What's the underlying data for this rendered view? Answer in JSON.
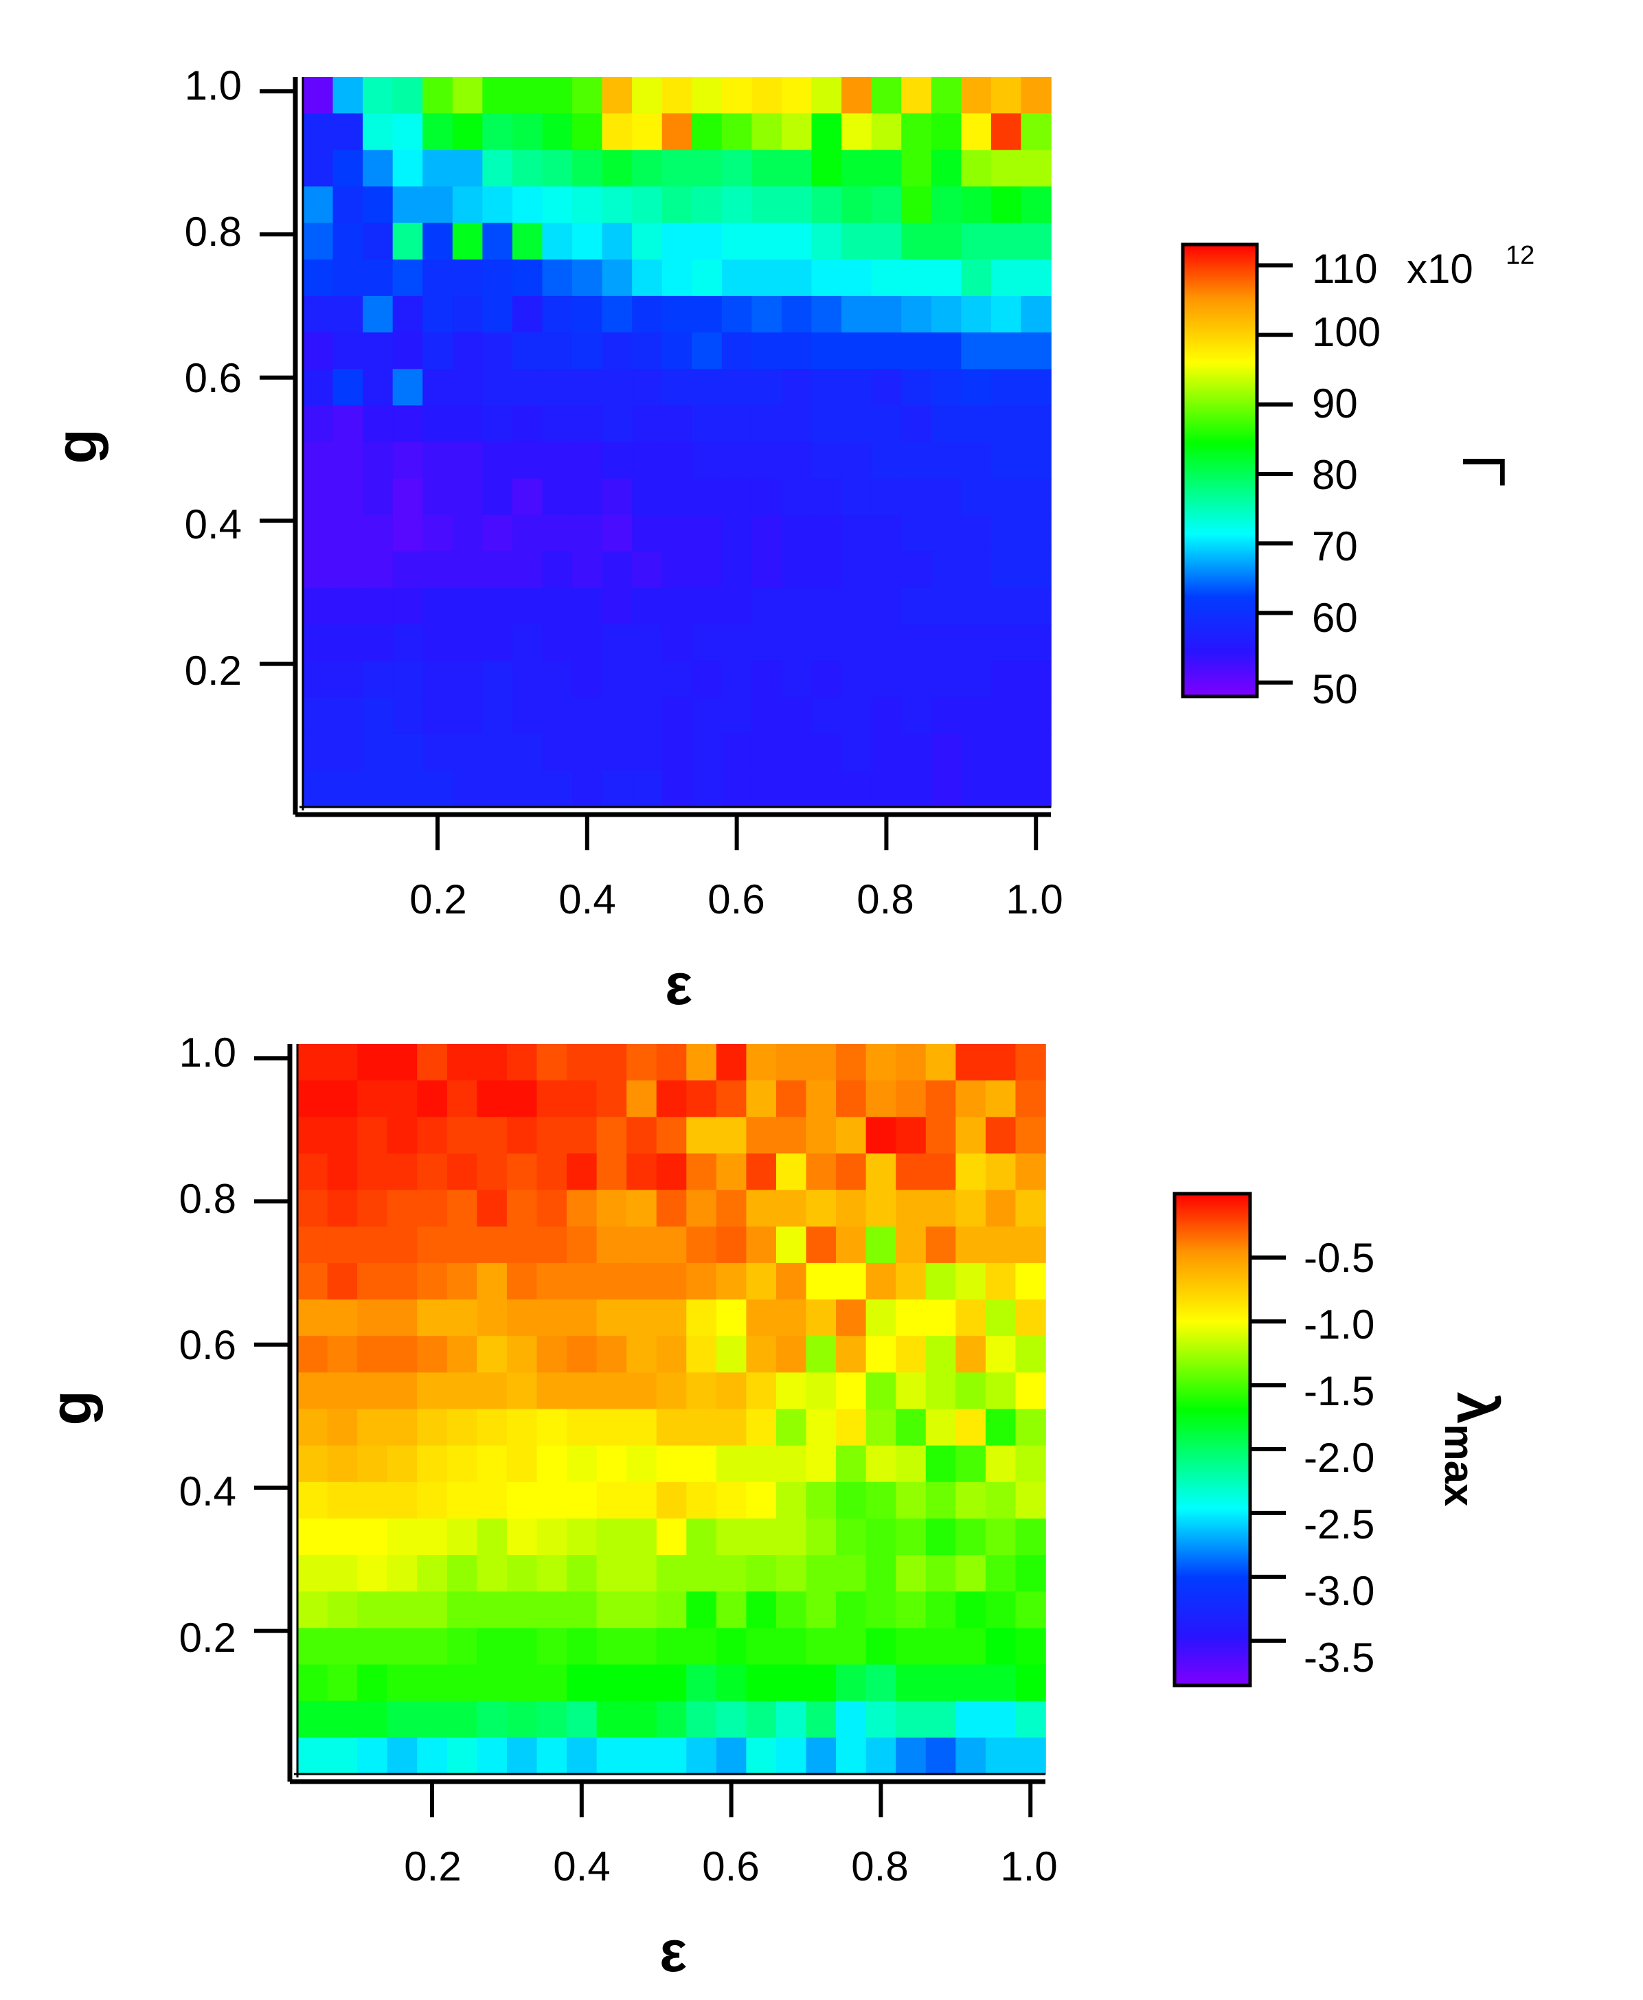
{
  "chart_data": [
    {
      "type": "heatmap",
      "title": "",
      "xlabel": "ε",
      "ylabel": "g",
      "xlim": [
        0.02,
        1.02
      ],
      "ylim": [
        0.0,
        1.02
      ],
      "xticks": [
        "0.2",
        "0.4",
        "0.6",
        "0.8",
        "1.0"
      ],
      "yticks": [
        "0.2",
        "0.4",
        "0.6",
        "0.8",
        "1.0"
      ],
      "x_centers": [
        0.05,
        0.09,
        0.13,
        0.17,
        0.21,
        0.25,
        0.29,
        0.33,
        0.37,
        0.41,
        0.45,
        0.49,
        0.53,
        0.57,
        0.61,
        0.65,
        0.69,
        0.73,
        0.77,
        0.81,
        0.85,
        0.89,
        0.93,
        0.97,
        1.01
      ],
      "y_centers": [
        1.0,
        0.95,
        0.9,
        0.85,
        0.8,
        0.75,
        0.7,
        0.65,
        0.6,
        0.55,
        0.5,
        0.45,
        0.4,
        0.35,
        0.3,
        0.25,
        0.2,
        0.15,
        0.1,
        0.05
      ],
      "colorbar": {
        "label": "Γ",
        "ticks": [
          "50",
          "60",
          "70",
          "80",
          "90",
          "100",
          "110"
        ],
        "multiplier": "x10",
        "exponent": "12",
        "range": [
          48,
          113
        ]
      },
      "values": [
        [
          50,
          68,
          75,
          76,
          88,
          91,
          86,
          86,
          86,
          88,
          102,
          95,
          98,
          95,
          97,
          98,
          97,
          94,
          105,
          88,
          99,
          88,
          103,
          101,
          104
        ],
        [
          58,
          58,
          73,
          72,
          82,
          84,
          80,
          81,
          83,
          86,
          98,
          97,
          106,
          86,
          88,
          91,
          93,
          84,
          95,
          93,
          87,
          86,
          97,
          110,
          90
        ],
        [
          58,
          62,
          66,
          71,
          68,
          68,
          75,
          77,
          78,
          80,
          82,
          80,
          79,
          79,
          78,
          80,
          80,
          84,
          82,
          82,
          87,
          83,
          91,
          92,
          92
        ],
        [
          66,
          60,
          62,
          67,
          67,
          69,
          70,
          71,
          72,
          73,
          74,
          75,
          77,
          76,
          75,
          76,
          76,
          78,
          80,
          79,
          86,
          81,
          82,
          84,
          82
        ],
        [
          64,
          61,
          59,
          77,
          62,
          83,
          63,
          82,
          70,
          71,
          69,
          73,
          71,
          71,
          72,
          72,
          72,
          74,
          76,
          76,
          80,
          80,
          78,
          78,
          78
        ],
        [
          62,
          61,
          61,
          63,
          60,
          60,
          61,
          62,
          64,
          65,
          67,
          70,
          71,
          72,
          70,
          70,
          70,
          71,
          71,
          72,
          72,
          72,
          76,
          73,
          73
        ],
        [
          57,
          57,
          65,
          56,
          60,
          59,
          61,
          56,
          60,
          61,
          63,
          61,
          62,
          62,
          63,
          64,
          63,
          64,
          66,
          66,
          67,
          68,
          69,
          70,
          68
        ],
        [
          54,
          56,
          56,
          55,
          58,
          56,
          57,
          59,
          59,
          60,
          58,
          59,
          61,
          63,
          60,
          61,
          61,
          62,
          62,
          62,
          62,
          62,
          64,
          64,
          64
        ],
        [
          56,
          62,
          56,
          65,
          56,
          56,
          57,
          57,
          57,
          57,
          57,
          57,
          58,
          58,
          58,
          58,
          57,
          58,
          58,
          57,
          59,
          60,
          61,
          60,
          60
        ],
        [
          53,
          52,
          54,
          54,
          55,
          55,
          56,
          55,
          56,
          56,
          57,
          56,
          56,
          57,
          57,
          57,
          57,
          58,
          58,
          58,
          57,
          59,
          59,
          59,
          59
        ],
        [
          52,
          52,
          53,
          52,
          53,
          53,
          54,
          54,
          54,
          54,
          55,
          55,
          55,
          56,
          56,
          56,
          56,
          57,
          57,
          58,
          58,
          58,
          58,
          59,
          59
        ],
        [
          52,
          52,
          53,
          51,
          53,
          53,
          54,
          52,
          54,
          54,
          53,
          55,
          55,
          55,
          55,
          55,
          56,
          56,
          57,
          57,
          57,
          57,
          58,
          58,
          58
        ],
        [
          52,
          52,
          52,
          51,
          52,
          53,
          52,
          53,
          53,
          53,
          52,
          54,
          54,
          54,
          55,
          54,
          55,
          55,
          56,
          56,
          57,
          57,
          57,
          58,
          58
        ],
        [
          52,
          52,
          52,
          53,
          53,
          53,
          53,
          53,
          54,
          53,
          54,
          53,
          54,
          54,
          55,
          54,
          55,
          55,
          56,
          56,
          56,
          57,
          57,
          58,
          58
        ],
        [
          54,
          54,
          54,
          54,
          55,
          55,
          55,
          55,
          55,
          55,
          54,
          55,
          55,
          55,
          55,
          56,
          56,
          56,
          56,
          56,
          57,
          57,
          57,
          57,
          57
        ],
        [
          55,
          55,
          55,
          56,
          55,
          55,
          55,
          56,
          55,
          55,
          56,
          56,
          55,
          56,
          56,
          56,
          56,
          56,
          56,
          56,
          56,
          56,
          56,
          56,
          56
        ],
        [
          56,
          56,
          57,
          57,
          56,
          56,
          57,
          56,
          56,
          55,
          56,
          56,
          56,
          55,
          56,
          55,
          56,
          55,
          56,
          56,
          56,
          56,
          56,
          55,
          55
        ],
        [
          57,
          57,
          58,
          57,
          56,
          56,
          57,
          56,
          56,
          56,
          56,
          56,
          55,
          56,
          56,
          55,
          55,
          56,
          56,
          55,
          56,
          55,
          55,
          55,
          55
        ],
        [
          57,
          57,
          58,
          58,
          57,
          57,
          57,
          57,
          56,
          56,
          56,
          56,
          55,
          56,
          55,
          55,
          55,
          55,
          56,
          55,
          55,
          54,
          55,
          55,
          55
        ],
        [
          58,
          58,
          58,
          58,
          58,
          57,
          57,
          57,
          57,
          56,
          57,
          57,
          55,
          56,
          55,
          55,
          55,
          55,
          55,
          55,
          55,
          54,
          55,
          55,
          55
        ]
      ]
    },
    {
      "type": "heatmap",
      "title": "",
      "xlabel": "ε",
      "ylabel": "g",
      "xlim": [
        0.02,
        1.02
      ],
      "ylim": [
        0.0,
        1.02
      ],
      "xticks": [
        "0.2",
        "0.4",
        "0.6",
        "0.8",
        "1.0"
      ],
      "yticks": [
        "0.2",
        "0.4",
        "0.6",
        "0.8",
        "1.0"
      ],
      "x_centers": [
        0.05,
        0.09,
        0.13,
        0.17,
        0.21,
        0.25,
        0.29,
        0.33,
        0.37,
        0.41,
        0.45,
        0.49,
        0.53,
        0.57,
        0.61,
        0.65,
        0.69,
        0.73,
        0.77,
        0.81,
        0.85,
        0.89,
        0.93,
        0.97,
        1.01
      ],
      "y_centers": [
        1.0,
        0.95,
        0.9,
        0.85,
        0.8,
        0.75,
        0.7,
        0.65,
        0.6,
        0.55,
        0.5,
        0.45,
        0.4,
        0.35,
        0.3,
        0.25,
        0.2,
        0.15,
        0.1,
        0.05
      ],
      "colorbar": {
        "label": "λmax",
        "label_main": "λ",
        "label_sub": "max",
        "ticks": [
          "-0.5",
          "-1.0",
          "-1.5",
          "-2.0",
          "-2.5",
          "-3.0",
          "-3.5"
        ],
        "range": [
          -3.85,
          0
        ]
      },
      "values": [
        [
          -0.1,
          -0.1,
          -0.05,
          -0.05,
          -0.2,
          -0.1,
          -0.1,
          -0.15,
          -0.25,
          -0.2,
          -0.2,
          -0.3,
          -0.25,
          -0.5,
          -0.1,
          -0.5,
          -0.45,
          -0.45,
          -0.35,
          -0.5,
          -0.45,
          -0.6,
          -0.15,
          -0.15,
          -0.25
        ],
        [
          -0.05,
          -0.05,
          -0.1,
          -0.1,
          -0.05,
          -0.15,
          -0.05,
          -0.05,
          -0.15,
          -0.15,
          -0.2,
          -0.45,
          -0.1,
          -0.15,
          -0.25,
          -0.6,
          -0.3,
          -0.5,
          -0.3,
          -0.45,
          -0.4,
          -0.3,
          -0.5,
          -0.6,
          -0.3
        ],
        [
          -0.1,
          -0.1,
          -0.15,
          -0.1,
          -0.15,
          -0.2,
          -0.2,
          -0.15,
          -0.2,
          -0.2,
          -0.3,
          -0.2,
          -0.3,
          -0.7,
          -0.7,
          -0.4,
          -0.4,
          -0.5,
          -0.6,
          -0.05,
          -0.1,
          -0.3,
          -0.6,
          -0.2,
          -0.35
        ],
        [
          -0.15,
          -0.1,
          -0.15,
          -0.15,
          -0.2,
          -0.15,
          -0.2,
          -0.25,
          -0.2,
          -0.1,
          -0.3,
          -0.15,
          -0.1,
          -0.35,
          -0.5,
          -0.2,
          -0.9,
          -0.4,
          -0.3,
          -0.7,
          -0.25,
          -0.25,
          -0.8,
          -0.7,
          -0.5
        ],
        [
          -0.2,
          -0.15,
          -0.2,
          -0.25,
          -0.25,
          -0.3,
          -0.15,
          -0.3,
          -0.25,
          -0.4,
          -0.5,
          -0.55,
          -0.3,
          -0.45,
          -0.35,
          -0.6,
          -0.6,
          -0.7,
          -0.6,
          -0.7,
          -0.6,
          -0.6,
          -0.7,
          -0.5,
          -0.7
        ],
        [
          -0.25,
          -0.25,
          -0.25,
          -0.25,
          -0.3,
          -0.3,
          -0.3,
          -0.3,
          -0.3,
          -0.35,
          -0.45,
          -0.45,
          -0.45,
          -0.35,
          -0.3,
          -0.45,
          -1.05,
          -0.3,
          -0.55,
          -1.35,
          -0.6,
          -0.35,
          -0.6,
          -0.6,
          -0.6
        ],
        [
          -0.3,
          -0.2,
          -0.3,
          -0.3,
          -0.35,
          -0.4,
          -0.55,
          -0.35,
          -0.4,
          -0.4,
          -0.4,
          -0.4,
          -0.4,
          -0.45,
          -0.55,
          -0.7,
          -0.45,
          -1.0,
          -1.0,
          -0.55,
          -0.7,
          -1.2,
          -1.1,
          -0.8,
          -1.0
        ],
        [
          -0.5,
          -0.5,
          -0.45,
          -0.45,
          -0.6,
          -0.6,
          -0.55,
          -0.5,
          -0.5,
          -0.5,
          -0.6,
          -0.6,
          -0.6,
          -0.9,
          -1.0,
          -0.55,
          -0.55,
          -0.7,
          -0.4,
          -1.1,
          -1.0,
          -1.0,
          -0.8,
          -1.2,
          -0.8
        ],
        [
          -0.35,
          -0.4,
          -0.35,
          -0.35,
          -0.4,
          -0.5,
          -0.7,
          -0.6,
          -0.45,
          -0.4,
          -0.45,
          -0.6,
          -0.55,
          -0.85,
          -1.1,
          -0.6,
          -0.5,
          -1.3,
          -0.6,
          -1.0,
          -0.85,
          -1.2,
          -0.6,
          -1.05,
          -1.2
        ],
        [
          -0.5,
          -0.5,
          -0.5,
          -0.5,
          -0.6,
          -0.6,
          -0.6,
          -0.65,
          -0.55,
          -0.55,
          -0.55,
          -0.55,
          -0.6,
          -0.7,
          -0.65,
          -0.8,
          -1.05,
          -1.1,
          -1.0,
          -1.35,
          -1.1,
          -1.2,
          -1.3,
          -1.2,
          -1.0
        ],
        [
          -0.6,
          -0.55,
          -0.65,
          -0.65,
          -0.75,
          -0.8,
          -0.85,
          -0.9,
          -0.95,
          -0.9,
          -0.9,
          -0.9,
          -0.75,
          -0.75,
          -0.75,
          -0.9,
          -1.3,
          -1.05,
          -0.9,
          -1.3,
          -1.5,
          -1.1,
          -0.9,
          -1.6,
          -1.3
        ],
        [
          -0.7,
          -0.65,
          -0.7,
          -0.75,
          -0.85,
          -0.9,
          -0.95,
          -0.9,
          -1.0,
          -1.05,
          -1.0,
          -1.05,
          -1.0,
          -1.0,
          -1.1,
          -1.1,
          -1.1,
          -1.05,
          -1.35,
          -1.1,
          -1.15,
          -1.6,
          -1.5,
          -1.1,
          -1.2
        ],
        [
          -0.9,
          -0.85,
          -0.85,
          -0.85,
          -0.9,
          -0.95,
          -0.95,
          -1.0,
          -1.0,
          -1.0,
          -0.95,
          -0.95,
          -0.8,
          -0.9,
          -0.95,
          -1.0,
          -1.2,
          -1.35,
          -1.5,
          -1.45,
          -1.3,
          -1.4,
          -1.25,
          -1.3,
          -1.15
        ],
        [
          -1.0,
          -1.0,
          -1.0,
          -1.05,
          -1.05,
          -1.1,
          -1.2,
          -1.05,
          -1.1,
          -1.15,
          -1.2,
          -1.2,
          -1.0,
          -1.3,
          -1.2,
          -1.2,
          -1.2,
          -1.3,
          -1.45,
          -1.5,
          -1.45,
          -1.6,
          -1.5,
          -1.4,
          -1.5
        ],
        [
          -1.1,
          -1.1,
          -1.05,
          -1.1,
          -1.2,
          -1.3,
          -1.2,
          -1.25,
          -1.2,
          -1.3,
          -1.2,
          -1.2,
          -1.3,
          -1.3,
          -1.3,
          -1.35,
          -1.3,
          -1.4,
          -1.4,
          -1.5,
          -1.3,
          -1.4,
          -1.3,
          -1.5,
          -1.6
        ],
        [
          -1.2,
          -1.25,
          -1.3,
          -1.3,
          -1.3,
          -1.4,
          -1.4,
          -1.4,
          -1.4,
          -1.4,
          -1.3,
          -1.3,
          -1.35,
          -1.65,
          -1.4,
          -1.65,
          -1.5,
          -1.4,
          -1.55,
          -1.5,
          -1.45,
          -1.55,
          -1.65,
          -1.6,
          -1.5
        ],
        [
          -1.5,
          -1.5,
          -1.5,
          -1.5,
          -1.5,
          -1.55,
          -1.6,
          -1.6,
          -1.55,
          -1.6,
          -1.55,
          -1.55,
          -1.6,
          -1.6,
          -1.65,
          -1.6,
          -1.6,
          -1.55,
          -1.55,
          -1.65,
          -1.6,
          -1.6,
          -1.6,
          -1.7,
          -1.65
        ],
        [
          -1.6,
          -1.55,
          -1.65,
          -1.6,
          -1.6,
          -1.6,
          -1.6,
          -1.6,
          -1.6,
          -1.7,
          -1.7,
          -1.7,
          -1.7,
          -1.9,
          -1.8,
          -1.7,
          -1.7,
          -1.7,
          -1.9,
          -2.0,
          -1.8,
          -1.8,
          -1.8,
          -1.8,
          -1.7
        ],
        [
          -1.8,
          -1.8,
          -1.8,
          -1.9,
          -1.9,
          -1.9,
          -2.0,
          -1.95,
          -2.0,
          -2.1,
          -1.8,
          -1.8,
          -1.9,
          -2.1,
          -2.2,
          -2.1,
          -2.3,
          -2.05,
          -2.5,
          -2.3,
          -2.2,
          -2.2,
          -2.5,
          -2.5,
          -2.3
        ],
        [
          -2.4,
          -2.4,
          -2.5,
          -2.6,
          -2.5,
          -2.4,
          -2.5,
          -2.6,
          -2.5,
          -2.6,
          -2.5,
          -2.5,
          -2.5,
          -2.6,
          -2.7,
          -2.4,
          -2.5,
          -2.7,
          -2.5,
          -2.6,
          -2.8,
          -2.9,
          -2.7,
          -2.6,
          -2.6
        ]
      ]
    }
  ]
}
